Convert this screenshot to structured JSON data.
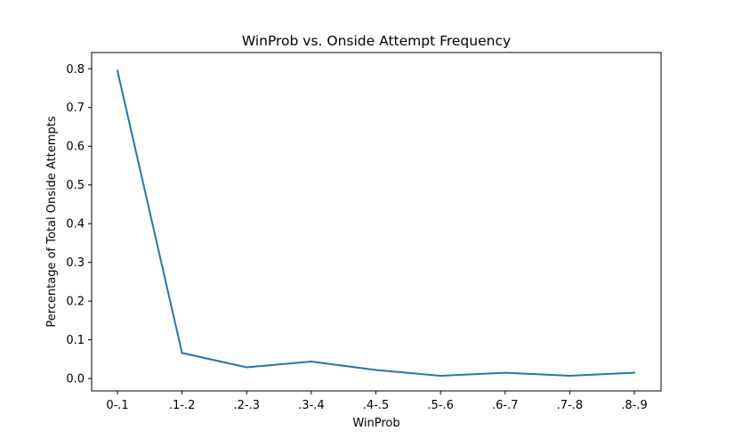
{
  "chart_data": {
    "type": "line",
    "title": "WinProb vs. Onside Attempt Frequency",
    "xlabel": "WinProb",
    "ylabel": "Percentage of Total Onside Attempts",
    "categories": [
      "0-.1",
      ".1-.2",
      ".2-.3",
      ".3-.4",
      ".4-.5",
      ".5-.6",
      ".6-.7",
      ".7-.8",
      ".8-.9"
    ],
    "series": [
      {
        "values": [
          0.795,
          0.066,
          0.029,
          0.044,
          0.022,
          0.007,
          0.015,
          0.007,
          0.015
        ],
        "color": "#1f77b4"
      }
    ],
    "ylim": [
      -0.032,
      0.842
    ],
    "yticks": [
      0.0,
      0.1,
      0.2,
      0.3,
      0.4,
      0.5,
      0.6,
      0.7,
      0.8
    ],
    "ytick_labels": [
      "0.0",
      "0.1",
      "0.2",
      "0.3",
      "0.4",
      "0.5",
      "0.6",
      "0.7",
      "0.8"
    ],
    "grid": false,
    "legend": "none"
  }
}
